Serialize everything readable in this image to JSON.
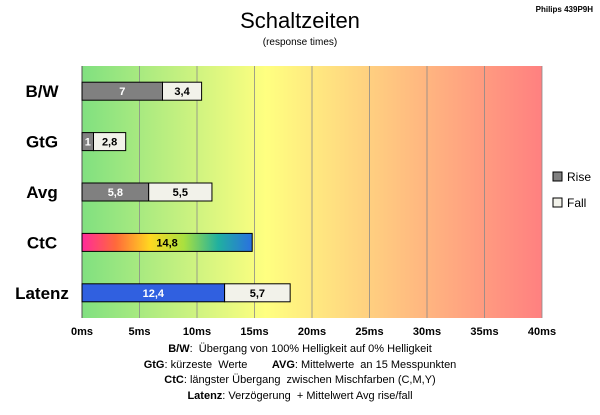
{
  "chart_data": {
    "type": "bar",
    "orientation": "horizontal",
    "stacked": true,
    "title": "Schaltzeiten",
    "subtitle": "(response times)",
    "model_label": "Philips 439P9H",
    "categories": [
      "B/W",
      "GtG",
      "Avg",
      "CtC",
      "Latenz"
    ],
    "series": [
      {
        "name": "Rise",
        "values": [
          7,
          1,
          5.8,
          14.8,
          12.4
        ],
        "labels": [
          "7",
          "1",
          "5,8",
          "14,8",
          "12,4"
        ],
        "color": "#808080"
      },
      {
        "name": "Fall",
        "values": [
          3.4,
          2.8,
          5.5,
          0,
          5.7
        ],
        "labels": [
          "3,4",
          "2,8",
          "5,5",
          "",
          "5,7"
        ],
        "color": "#f2f2ea"
      }
    ],
    "special_colors": {
      "CtC": "rainbow",
      "Latenz_rise": "#3060e0"
    },
    "xlim": [
      0,
      40
    ],
    "xticks": [
      0,
      5,
      10,
      15,
      20,
      25,
      30,
      35,
      40
    ],
    "xtick_labels": [
      "0ms",
      "5ms",
      "10ms",
      "15ms",
      "20ms",
      "25ms",
      "30ms",
      "35ms",
      "40ms"
    ],
    "background_gradient": [
      "#80e080",
      "#ffff80",
      "#ff8080"
    ],
    "grid": true,
    "legend": "right"
  },
  "notes": [
    {
      "key": "B/W",
      "text": ":  Übergang von 100% Helligkeit auf 0% Helligkeit"
    },
    {
      "key": "GtG",
      "text": ": kürzeste  Werte        ",
      "key2": "AVG",
      "text2": ": Mittelwerte  an 15 Messpunkten"
    },
    {
      "key": "CtC",
      "text": ": längster Übergang  zwischen Mischfarben (C,M,Y)"
    },
    {
      "key": "Latenz",
      "text": ": Verzögerung  + Mittelwert Avg rise/fall"
    }
  ]
}
